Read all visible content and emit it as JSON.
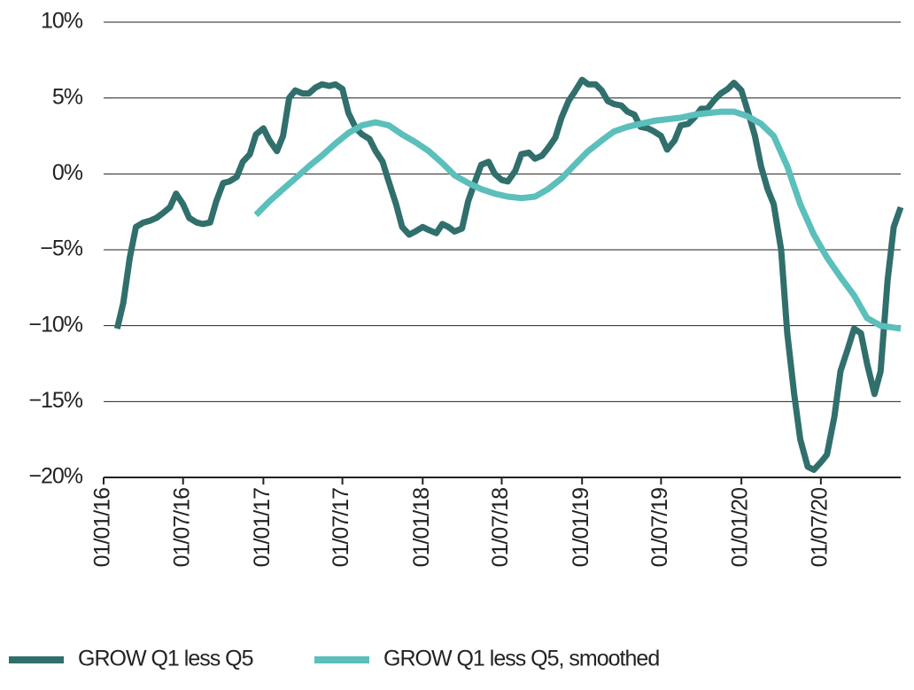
{
  "chart_data": {
    "type": "line",
    "xlim": [
      "2016-01-01",
      "2020-12-31"
    ],
    "xticks": [
      {
        "value": "2016-01-01",
        "label": "01/01/16"
      },
      {
        "value": "2016-07-01",
        "label": "01/07/16"
      },
      {
        "value": "2017-01-01",
        "label": "01/01/17"
      },
      {
        "value": "2017-07-01",
        "label": "01/07/17"
      },
      {
        "value": "2018-01-01",
        "label": "01/01/18"
      },
      {
        "value": "2018-07-01",
        "label": "01/07/18"
      },
      {
        "value": "2019-01-01",
        "label": "01/01/19"
      },
      {
        "value": "2019-07-01",
        "label": "01/07/19"
      },
      {
        "value": "2020-01-01",
        "label": "01/01/20"
      },
      {
        "value": "2020-07-01",
        "label": "01/07/20"
      }
    ],
    "ylim": [
      -20,
      10
    ],
    "yticks": [
      {
        "value": -20,
        "label": "−20%"
      },
      {
        "value": -15,
        "label": "−15%"
      },
      {
        "value": -10,
        "label": "−10%"
      },
      {
        "value": -5,
        "label": "−5%"
      },
      {
        "value": 0,
        "label": "0%"
      },
      {
        "value": 5,
        "label": "5%"
      },
      {
        "value": 10,
        "label": "10%"
      }
    ],
    "grid": true,
    "legend": "bottom",
    "series": [
      {
        "name": "GROW Q1 less Q5",
        "color": "#306f6c",
        "x": [
          "2016-02-01",
          "2016-02-15",
          "2016-03-01",
          "2016-03-15",
          "2016-04-01",
          "2016-04-15",
          "2016-05-01",
          "2016-05-15",
          "2016-06-01",
          "2016-06-15",
          "2016-07-01",
          "2016-07-15",
          "2016-08-01",
          "2016-08-15",
          "2016-09-01",
          "2016-09-15",
          "2016-10-01",
          "2016-10-15",
          "2016-11-01",
          "2016-11-15",
          "2016-12-01",
          "2016-12-15",
          "2017-01-01",
          "2017-01-15",
          "2017-02-01",
          "2017-02-15",
          "2017-03-01",
          "2017-03-15",
          "2017-04-01",
          "2017-04-15",
          "2017-05-01",
          "2017-05-15",
          "2017-06-01",
          "2017-06-15",
          "2017-07-01",
          "2017-07-15",
          "2017-08-01",
          "2017-08-15",
          "2017-09-01",
          "2017-09-15",
          "2017-10-01",
          "2017-10-15",
          "2017-11-01",
          "2017-11-15",
          "2017-12-01",
          "2017-12-15",
          "2018-01-01",
          "2018-01-15",
          "2018-02-01",
          "2018-02-15",
          "2018-03-01",
          "2018-03-15",
          "2018-04-01",
          "2018-04-15",
          "2018-05-01",
          "2018-05-15",
          "2018-06-01",
          "2018-06-15",
          "2018-07-01",
          "2018-07-15",
          "2018-08-01",
          "2018-08-15",
          "2018-09-01",
          "2018-09-15",
          "2018-10-01",
          "2018-10-15",
          "2018-11-01",
          "2018-11-15",
          "2018-12-01",
          "2018-12-15",
          "2019-01-01",
          "2019-01-15",
          "2019-02-01",
          "2019-02-15",
          "2019-03-01",
          "2019-03-15",
          "2019-04-01",
          "2019-04-15",
          "2019-05-01",
          "2019-05-15",
          "2019-06-01",
          "2019-06-15",
          "2019-07-01",
          "2019-07-15",
          "2019-08-01",
          "2019-08-15",
          "2019-09-01",
          "2019-09-15",
          "2019-10-01",
          "2019-10-15",
          "2019-11-01",
          "2019-11-15",
          "2019-12-01",
          "2019-12-15",
          "2020-01-01",
          "2020-01-15",
          "2020-02-01",
          "2020-02-15",
          "2020-03-01",
          "2020-03-15",
          "2020-04-01",
          "2020-04-15",
          "2020-05-01",
          "2020-05-15",
          "2020-06-01",
          "2020-06-15",
          "2020-07-01",
          "2020-07-15",
          "2020-08-01",
          "2020-08-15",
          "2020-09-01",
          "2020-09-15",
          "2020-10-01",
          "2020-10-15",
          "2020-11-01",
          "2020-11-15",
          "2020-12-01",
          "2020-12-15",
          "2020-12-31"
        ],
        "values": [
          -10.2,
          -8.5,
          -5.5,
          -3.5,
          -3.2,
          -3.1,
          -2.9,
          -2.6,
          -2.2,
          -1.3,
          -2.0,
          -2.9,
          -3.2,
          -3.3,
          -3.2,
          -1.8,
          -0.6,
          -0.5,
          -0.2,
          0.8,
          1.3,
          2.6,
          3.0,
          2.2,
          1.5,
          2.5,
          5.0,
          5.5,
          5.3,
          5.3,
          5.7,
          5.9,
          5.8,
          5.9,
          5.6,
          4.0,
          3.0,
          2.6,
          2.3,
          1.5,
          0.8,
          -0.5,
          -2.0,
          -3.5,
          -4.0,
          -3.8,
          -3.5,
          -3.7,
          -3.9,
          -3.3,
          -3.5,
          -3.8,
          -3.6,
          -1.8,
          -0.5,
          0.6,
          0.8,
          0.0,
          -0.4,
          -0.5,
          0.2,
          1.3,
          1.4,
          1.0,
          1.2,
          1.7,
          2.4,
          3.7,
          4.8,
          5.4,
          6.2,
          5.9,
          5.9,
          5.5,
          4.8,
          4.6,
          4.5,
          4.1,
          3.9,
          3.1,
          3.0,
          2.8,
          2.5,
          1.6,
          2.2,
          3.2,
          3.3,
          3.7,
          4.3,
          4.3,
          4.9,
          5.3,
          5.6,
          6.0,
          5.5,
          4.2,
          2.5,
          0.5,
          -1.0,
          -2.0,
          -5.0,
          -10.5,
          -14.5,
          -17.5,
          -19.3,
          -19.5,
          -19.0,
          -18.5,
          -16.0,
          -13.0,
          -11.5,
          -10.2,
          -10.5,
          -12.5,
          -14.5,
          -13.0,
          -7.0,
          -3.5,
          -2.2
        ]
      },
      {
        "name": "GROW Q1 less Q5, smoothed",
        "color": "#5bbfbb",
        "x": [
          "2016-12-15",
          "2017-01-15",
          "2017-02-15",
          "2017-03-15",
          "2017-04-15",
          "2017-05-15",
          "2017-06-15",
          "2017-07-15",
          "2017-08-15",
          "2017-09-15",
          "2017-10-15",
          "2017-11-15",
          "2017-12-15",
          "2018-01-15",
          "2018-02-15",
          "2018-03-15",
          "2018-04-15",
          "2018-05-15",
          "2018-06-15",
          "2018-07-15",
          "2018-08-15",
          "2018-09-15",
          "2018-10-15",
          "2018-11-15",
          "2018-12-15",
          "2019-01-15",
          "2019-02-15",
          "2019-03-15",
          "2019-04-15",
          "2019-05-15",
          "2019-06-15",
          "2019-07-15",
          "2019-08-15",
          "2019-09-15",
          "2019-10-15",
          "2019-11-15",
          "2019-12-15",
          "2020-01-15",
          "2020-02-15",
          "2020-03-15",
          "2020-04-15",
          "2020-05-15",
          "2020-06-15",
          "2020-07-15",
          "2020-08-15",
          "2020-09-15",
          "2020-10-15",
          "2020-11-15",
          "2020-12-31"
        ],
        "values": [
          -2.7,
          -1.8,
          -1.0,
          -0.3,
          0.5,
          1.2,
          2.0,
          2.7,
          3.2,
          3.4,
          3.2,
          2.6,
          2.1,
          1.5,
          0.7,
          -0.1,
          -0.6,
          -1.0,
          -1.3,
          -1.5,
          -1.6,
          -1.5,
          -1.0,
          -0.3,
          0.6,
          1.5,
          2.2,
          2.8,
          3.1,
          3.3,
          3.5,
          3.6,
          3.7,
          3.9,
          4.0,
          4.1,
          4.1,
          3.8,
          3.3,
          2.5,
          0.5,
          -2.0,
          -4.0,
          -5.5,
          -6.8,
          -8.0,
          -9.5,
          -10.0,
          -10.2
        ]
      }
    ]
  }
}
